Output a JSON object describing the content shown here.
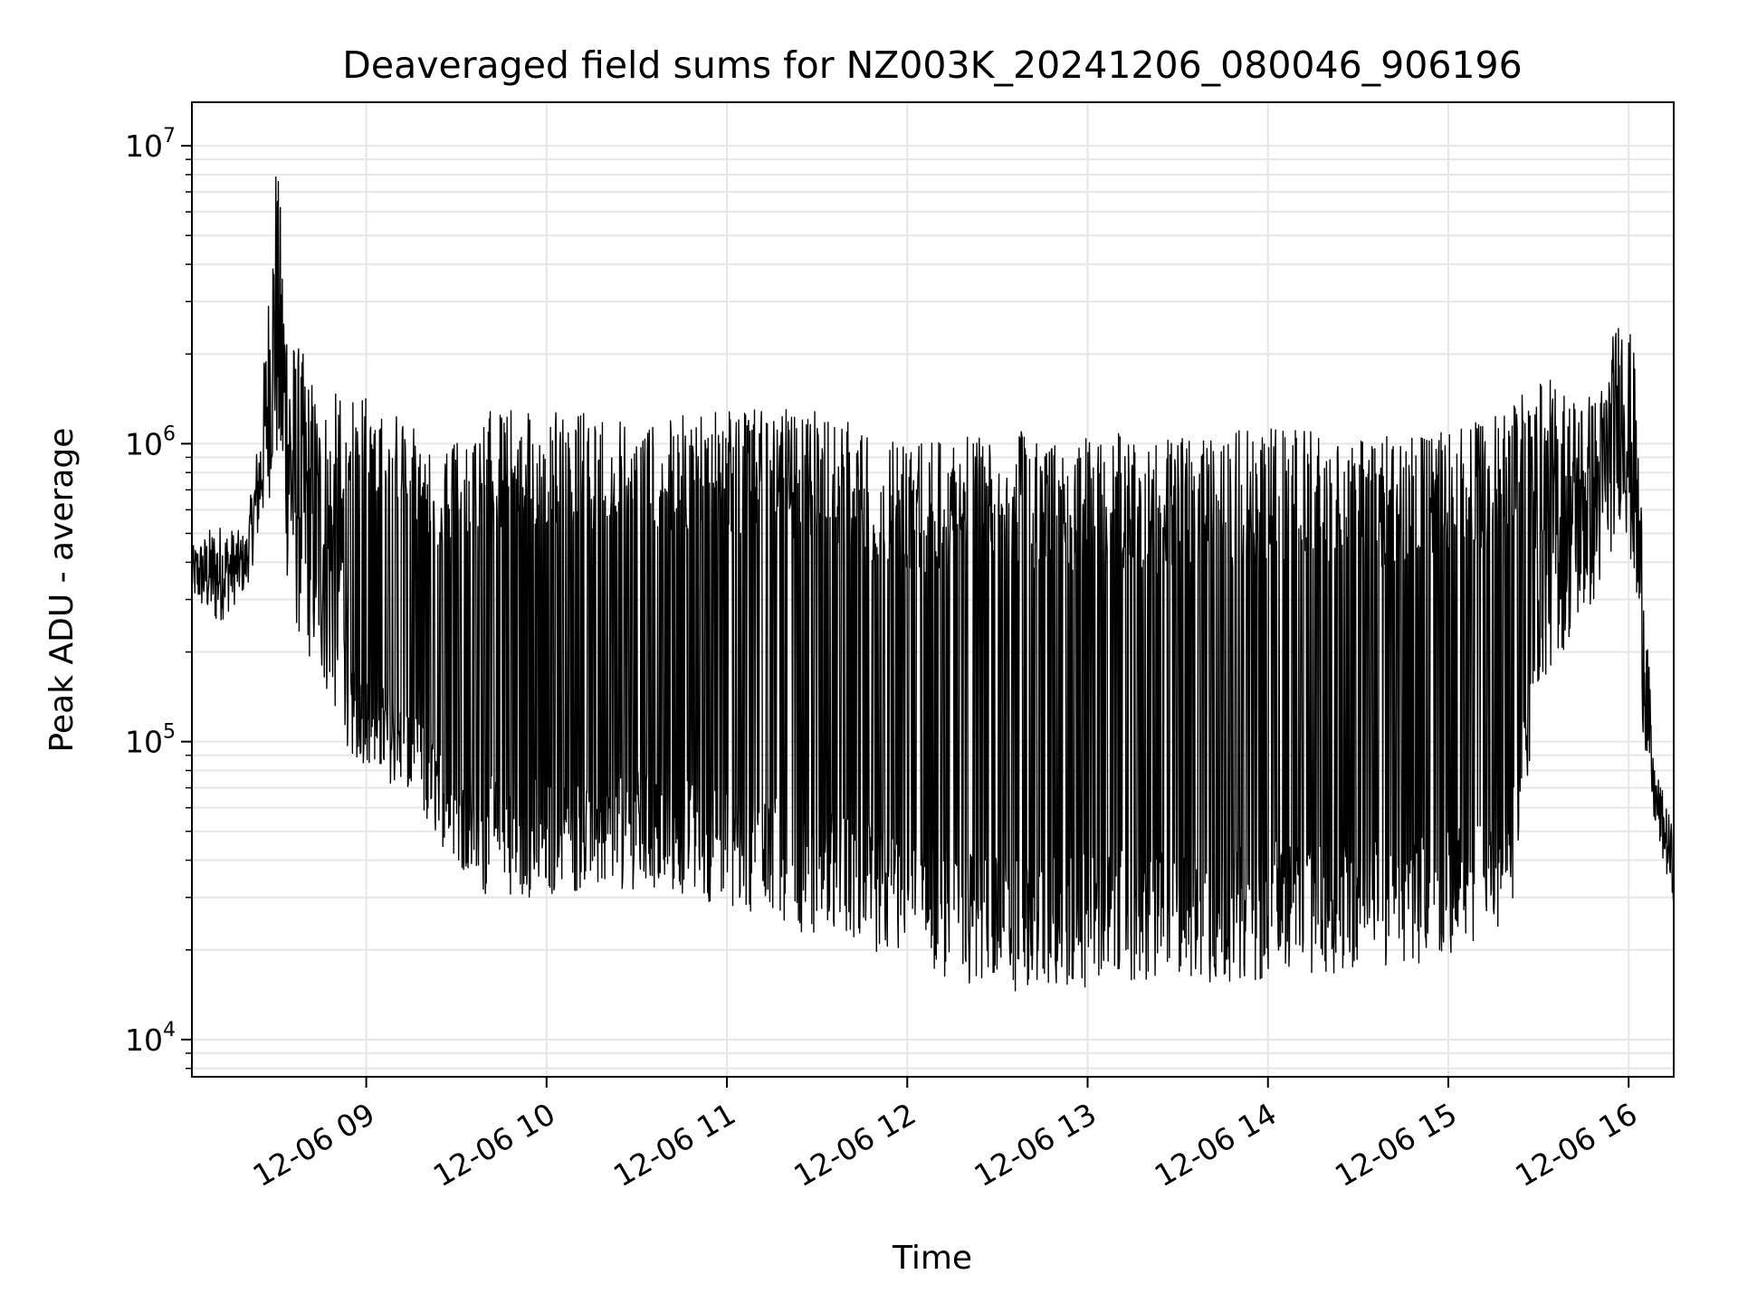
{
  "chart_data": {
    "type": "line",
    "title": "Deaveraged field sums for NZ003K_20241206_080046_906196",
    "xlabel": "Time",
    "ylabel": "Peak ADU - average",
    "yscale": "log",
    "grid": true,
    "line_color": "#000000",
    "grid_color": "#e6e6e6",
    "xlim": [
      "2024-12-06 08:02",
      "2024-12-06 16:15"
    ],
    "ylim": [
      7500,
      14000000
    ],
    "x_ticks": [
      {
        "value": "2024-12-06 09:00",
        "label": "12-06 09"
      },
      {
        "value": "2024-12-06 10:00",
        "label": "12-06 10"
      },
      {
        "value": "2024-12-06 11:00",
        "label": "12-06 11"
      },
      {
        "value": "2024-12-06 12:00",
        "label": "12-06 12"
      },
      {
        "value": "2024-12-06 13:00",
        "label": "12-06 13"
      },
      {
        "value": "2024-12-06 14:00",
        "label": "12-06 14"
      },
      {
        "value": "2024-12-06 15:00",
        "label": "12-06 15"
      },
      {
        "value": "2024-12-06 16:00",
        "label": "12-06 16"
      }
    ],
    "y_ticks": [
      {
        "value": 10000,
        "base": "10",
        "exp": "4"
      },
      {
        "value": 100000,
        "base": "10",
        "exp": "5"
      },
      {
        "value": 1000000,
        "base": "10",
        "exp": "6"
      },
      {
        "value": 10000000,
        "base": "10",
        "exp": "7"
      }
    ],
    "series_envelope": [
      {
        "time": "2024-12-06 08:02",
        "low": 300000,
        "high": 450000
      },
      {
        "time": "2024-12-06 08:10",
        "low": 240000,
        "high": 550000
      },
      {
        "time": "2024-12-06 08:20",
        "low": 320000,
        "high": 500000
      },
      {
        "time": "2024-12-06 08:25",
        "low": 500000,
        "high": 1300000
      },
      {
        "time": "2024-12-06 08:30",
        "low": 800000,
        "high": 9700000
      },
      {
        "time": "2024-12-06 08:35",
        "low": 250000,
        "high": 2500000
      },
      {
        "time": "2024-12-06 08:45",
        "low": 150000,
        "high": 1500000
      },
      {
        "time": "2024-12-06 08:55",
        "low": 90000,
        "high": 1500000
      },
      {
        "time": "2024-12-06 09:10",
        "low": 70000,
        "high": 1300000
      },
      {
        "time": "2024-12-06 09:25",
        "low": 45000,
        "high": 900000
      },
      {
        "time": "2024-12-06 09:40",
        "low": 30000,
        "high": 1300000
      },
      {
        "time": "2024-12-06 10:00",
        "low": 30000,
        "high": 1300000
      },
      {
        "time": "2024-12-06 10:30",
        "low": 32000,
        "high": 1250000
      },
      {
        "time": "2024-12-06 11:00",
        "low": 28000,
        "high": 1300000
      },
      {
        "time": "2024-12-06 11:30",
        "low": 22000,
        "high": 1300000
      },
      {
        "time": "2024-12-06 12:00",
        "low": 18000,
        "high": 1000000
      },
      {
        "time": "2024-12-06 12:30",
        "low": 14000,
        "high": 1100000
      },
      {
        "time": "2024-12-06 13:00",
        "low": 15000,
        "high": 1100000
      },
      {
        "time": "2024-12-06 13:30",
        "low": 15000,
        "high": 1050000
      },
      {
        "time": "2024-12-06 14:00",
        "low": 16000,
        "high": 1150000
      },
      {
        "time": "2024-12-06 14:30",
        "low": 17000,
        "high": 1050000
      },
      {
        "time": "2024-12-06 15:00",
        "low": 18000,
        "high": 1100000
      },
      {
        "time": "2024-12-06 15:20",
        "low": 22000,
        "high": 1300000
      },
      {
        "time": "2024-12-06 15:30",
        "low": 150000,
        "high": 1700000
      },
      {
        "time": "2024-12-06 15:50",
        "low": 300000,
        "high": 1500000
      },
      {
        "time": "2024-12-06 15:58",
        "low": 600000,
        "high": 3200000
      },
      {
        "time": "2024-12-06 16:02",
        "low": 300000,
        "high": 2000000
      },
      {
        "time": "2024-12-06 16:05",
        "low": 100000,
        "high": 500000
      },
      {
        "time": "2024-12-06 16:08",
        "low": 55000,
        "high": 90000
      },
      {
        "time": "2024-12-06 16:15",
        "low": 28000,
        "high": 50000
      }
    ]
  }
}
